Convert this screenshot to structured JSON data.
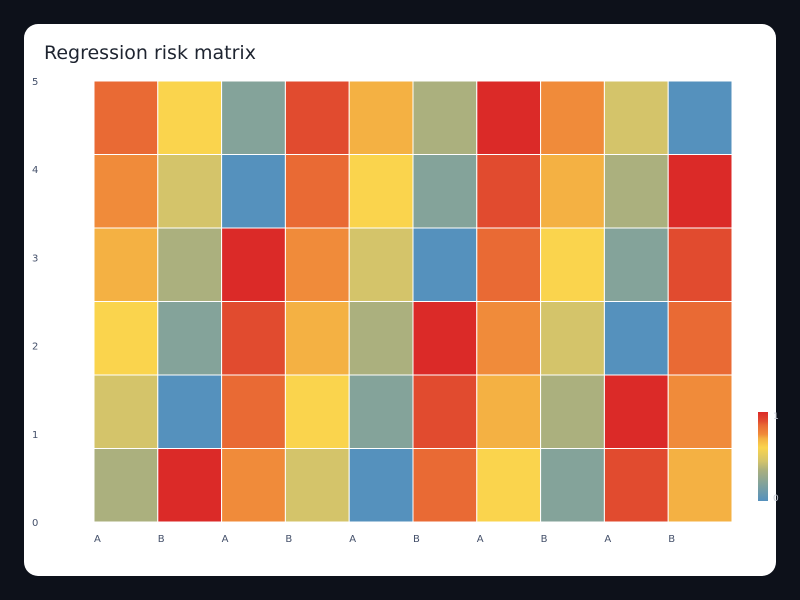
{
  "chart_data": {
    "type": "heatmap",
    "title": "Regression risk matrix",
    "x_tick_labels": [
      "A",
      "B",
      "A",
      "B",
      "A",
      "B",
      "A",
      "B",
      "A",
      "B"
    ],
    "y_tick_labels": [
      "0",
      "1",
      "2",
      "3",
      "4",
      "5"
    ],
    "xlim": [
      0,
      10
    ],
    "ylim": [
      0,
      5
    ],
    "rows_bottom_to_top": [
      [
        0.35,
        1.0,
        0.75,
        0.45,
        0.0,
        0.85,
        0.6,
        0.2,
        0.9,
        0.7
      ],
      [
        0.45,
        0.0,
        0.85,
        0.6,
        0.2,
        0.9,
        0.7,
        0.35,
        1.0,
        0.75
      ],
      [
        0.6,
        0.2,
        0.9,
        0.7,
        0.35,
        1.0,
        0.75,
        0.45,
        0.0,
        0.85
      ],
      [
        0.7,
        0.35,
        1.0,
        0.75,
        0.45,
        0.0,
        0.85,
        0.6,
        0.2,
        0.9
      ],
      [
        0.75,
        0.45,
        0.0,
        0.85,
        0.6,
        0.2,
        0.9,
        0.7,
        0.35,
        1.0
      ],
      [
        0.85,
        0.6,
        0.2,
        0.9,
        0.7,
        0.35,
        1.0,
        0.75,
        0.45,
        0.0
      ]
    ],
    "colorscale": [
      [
        0.0,
        "#5591bd"
      ],
      [
        0.2,
        "#84a39a"
      ],
      [
        0.35,
        "#abb07e"
      ],
      [
        0.45,
        "#d4c46a"
      ],
      [
        0.6,
        "#fad44d"
      ],
      [
        0.7,
        "#f4b143"
      ],
      [
        0.75,
        "#f08b3a"
      ],
      [
        0.85,
        "#e96a34"
      ],
      [
        0.9,
        "#e14b2f"
      ],
      [
        1.0,
        "#db2a28"
      ]
    ],
    "colorbar": {
      "min_label": "0",
      "max_label": "1"
    },
    "grid": false,
    "legend": "colorbar right"
  }
}
